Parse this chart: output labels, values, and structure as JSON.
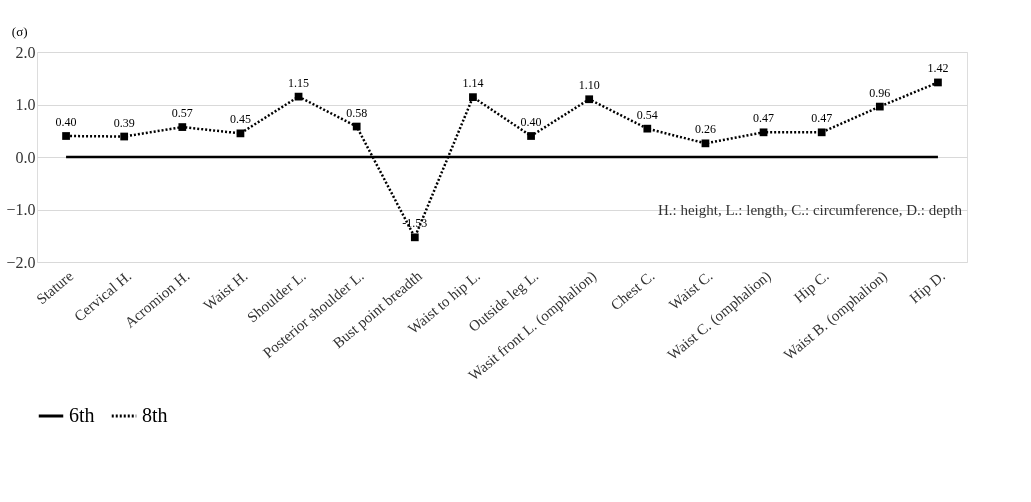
{
  "chart_data": {
    "type": "line",
    "ylabel": "(σ)",
    "categories": [
      "Stature",
      "Cervical H.",
      "Acromion H.",
      "Waist H.",
      "Shoulder L.",
      "Posterior shoulder L.",
      "Bust point breadth",
      "Waist to hip L.",
      "Outside leg L.",
      "Wasit front L. (omphalion)",
      "Chest C.",
      "Waist C.",
      "Waist C. (omphalion)",
      "Hip C.",
      "Waist B. (omphalion)",
      "Hip D."
    ],
    "series": [
      {
        "name": "6th",
        "color": "#000000",
        "line_style": "solid",
        "marker": "none",
        "values": [
          0,
          0,
          0,
          0,
          0,
          0,
          0,
          0,
          0,
          0,
          0,
          0,
          0,
          0,
          0,
          0
        ]
      },
      {
        "name": "8th",
        "color": "#000000",
        "line_style": "dotted",
        "marker": "square",
        "values": [
          0.4,
          0.39,
          0.57,
          0.45,
          1.15,
          0.58,
          -1.53,
          1.14,
          0.4,
          1.1,
          0.54,
          0.26,
          0.47,
          0.47,
          0.96,
          1.42
        ],
        "value_labels": [
          "0.40",
          "0.39",
          "0.57",
          "0.45",
          "1.15",
          "0.58",
          "-1.53",
          "1.14",
          "0.40",
          "1.10",
          "0.54",
          "0.26",
          "0.47",
          "0.47",
          "0.96",
          "1.42"
        ]
      }
    ],
    "ylim": [
      -2,
      2
    ],
    "yticks": [
      {
        "value": -2,
        "label": "−2.0"
      },
      {
        "value": -1,
        "label": "−1.0"
      },
      {
        "value": 0,
        "label": "0.0"
      },
      {
        "value": 1,
        "label": "1.0"
      },
      {
        "value": 2,
        "label": "2.0"
      }
    ],
    "grid": "y",
    "legend": "bottom",
    "annotations": [
      "H.: height, L.: length, C.: circumference, D.: depth"
    ]
  }
}
